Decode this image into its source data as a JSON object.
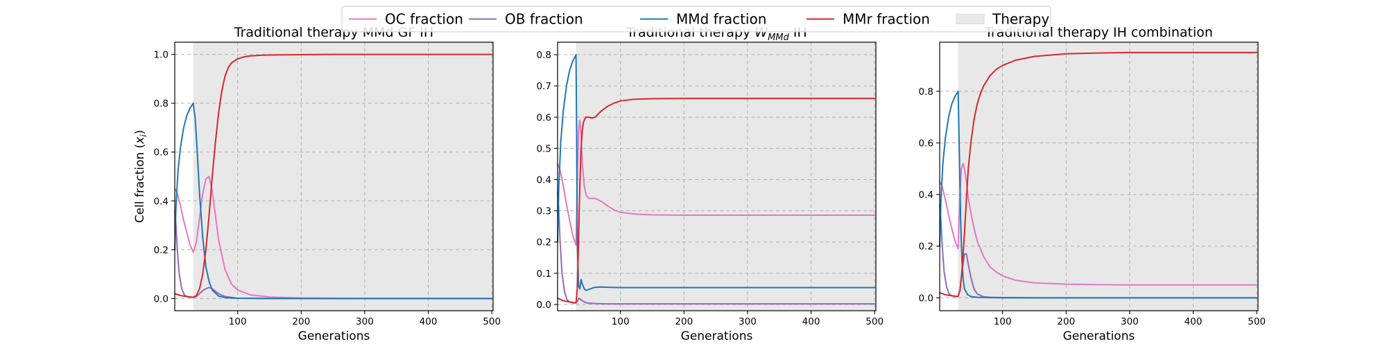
{
  "legend": {
    "items": [
      {
        "label": "OC fraction",
        "color": "#e377c2",
        "kind": "line"
      },
      {
        "label": "OB fraction",
        "color": "#9467bd",
        "kind": "line"
      },
      {
        "label": "MMd fraction",
        "color": "#1f77b4",
        "kind": "line"
      },
      {
        "label": "MMr fraction",
        "color": "#d62728",
        "kind": "line"
      },
      {
        "label": "Therapy",
        "color": "#e8e8e8",
        "kind": "patch"
      }
    ]
  },
  "chart_data": [
    {
      "type": "line",
      "title": "Traditional therapy MMd GF IH",
      "xlabel": "Generations",
      "ylabel": "Cell fraction (xᵢ)",
      "xlim": [
        1,
        502
      ],
      "ylim": [
        -0.05,
        1.05
      ],
      "xticks": [
        100,
        200,
        300,
        400,
        500
      ],
      "yticks": [
        0.0,
        0.2,
        0.4,
        0.6,
        0.8,
        1.0
      ],
      "ytick_labels": [
        "0.0",
        "0.2",
        "0.4",
        "0.6",
        "0.8",
        "1.0"
      ],
      "grid": true,
      "therapy_span": [
        30,
        502
      ],
      "series": [
        {
          "name": "OC fraction",
          "color": "#e377c2",
          "x": [
            1,
            5,
            10,
            15,
            20,
            25,
            30,
            35,
            40,
            45,
            50,
            55,
            60,
            65,
            70,
            80,
            90,
            100,
            120,
            150,
            200,
            250,
            300,
            400,
            500
          ],
          "y": [
            0.45,
            0.43,
            0.38,
            0.32,
            0.27,
            0.22,
            0.19,
            0.23,
            0.33,
            0.43,
            0.49,
            0.5,
            0.44,
            0.34,
            0.24,
            0.12,
            0.06,
            0.035,
            0.015,
            0.006,
            0.002,
            0.001,
            0.0,
            0.0,
            0.0
          ]
        },
        {
          "name": "OB fraction",
          "color": "#9467bd",
          "x": [
            1,
            3,
            5,
            8,
            12,
            16,
            20,
            25,
            30,
            35,
            40,
            45,
            50,
            55,
            60,
            65,
            70,
            80,
            100,
            150,
            200,
            300,
            400,
            500
          ],
          "y": [
            0.36,
            0.3,
            0.2,
            0.1,
            0.04,
            0.015,
            0.008,
            0.005,
            0.005,
            0.008,
            0.02,
            0.032,
            0.04,
            0.045,
            0.04,
            0.03,
            0.02,
            0.008,
            0.001,
            0.0,
            0.0,
            0.0,
            0.0,
            0.0
          ]
        },
        {
          "name": "MMd fraction",
          "color": "#1f77b4",
          "x": [
            1,
            3,
            6,
            10,
            15,
            20,
            25,
            30,
            33,
            36,
            40,
            45,
            50,
            55,
            60,
            70,
            80,
            90,
            100,
            150,
            200,
            300,
            400,
            500
          ],
          "y": [
            0.2,
            0.38,
            0.52,
            0.62,
            0.7,
            0.75,
            0.78,
            0.8,
            0.74,
            0.62,
            0.43,
            0.25,
            0.13,
            0.07,
            0.035,
            0.01,
            0.004,
            0.002,
            0.001,
            0.0,
            0.0,
            0.0,
            0.0,
            0.0
          ]
        },
        {
          "name": "MMr fraction",
          "color": "#d62728",
          "x": [
            1,
            10,
            20,
            30,
            35,
            40,
            45,
            50,
            55,
            60,
            65,
            70,
            75,
            80,
            85,
            90,
            100,
            110,
            120,
            140,
            160,
            200,
            250,
            300,
            400,
            500
          ],
          "y": [
            0.02,
            0.012,
            0.008,
            0.005,
            0.012,
            0.04,
            0.1,
            0.2,
            0.34,
            0.5,
            0.64,
            0.76,
            0.85,
            0.91,
            0.945,
            0.965,
            0.982,
            0.99,
            0.994,
            0.997,
            0.998,
            0.999,
            1.0,
            1.0,
            1.0,
            1.0
          ]
        }
      ]
    },
    {
      "type": "line",
      "title": "Traditional therapy Wₘₘᵈ IH",
      "title_main": "Traditional therapy ",
      "title_math": "W",
      "title_sub": "MMd",
      "title_tail": " IH",
      "xlabel": "Generations",
      "ylabel": "",
      "xlim": [
        1,
        502
      ],
      "ylim": [
        -0.02,
        0.84
      ],
      "xticks": [
        100,
        200,
        300,
        400,
        500
      ],
      "yticks": [
        0.0,
        0.1,
        0.2,
        0.3,
        0.4,
        0.5,
        0.6,
        0.7,
        0.8
      ],
      "ytick_labels": [
        "0.0",
        "0.1",
        "0.2",
        "0.3",
        "0.4",
        "0.5",
        "0.6",
        "0.7",
        "0.8"
      ],
      "grid": true,
      "therapy_span": [
        30,
        502
      ],
      "series": [
        {
          "name": "OC fraction",
          "color": "#e377c2",
          "x": [
            1,
            5,
            10,
            15,
            20,
            25,
            30,
            32,
            34,
            36,
            38,
            40,
            43,
            46,
            50,
            55,
            60,
            65,
            70,
            80,
            90,
            100,
            120,
            150,
            200,
            300,
            400,
            500
          ],
          "y": [
            0.45,
            0.43,
            0.38,
            0.32,
            0.27,
            0.22,
            0.19,
            0.4,
            0.56,
            0.59,
            0.54,
            0.45,
            0.38,
            0.35,
            0.34,
            0.34,
            0.34,
            0.335,
            0.33,
            0.315,
            0.303,
            0.295,
            0.29,
            0.287,
            0.286,
            0.286,
            0.286,
            0.286
          ]
        },
        {
          "name": "OB fraction",
          "color": "#9467bd",
          "x": [
            1,
            3,
            5,
            8,
            12,
            16,
            20,
            25,
            30,
            35,
            40,
            45,
            50,
            60,
            80,
            100,
            150,
            200,
            300,
            400,
            500
          ],
          "y": [
            0.36,
            0.3,
            0.2,
            0.1,
            0.04,
            0.015,
            0.008,
            0.005,
            0.005,
            0.02,
            0.012,
            0.006,
            0.004,
            0.003,
            0.002,
            0.002,
            0.002,
            0.002,
            0.002,
            0.002,
            0.002
          ]
        },
        {
          "name": "MMd fraction",
          "color": "#1f77b4",
          "x": [
            1,
            3,
            6,
            10,
            15,
            20,
            25,
            30,
            31,
            32,
            34,
            36,
            38,
            40,
            43,
            46,
            50,
            55,
            60,
            70,
            80,
            100,
            150,
            200,
            300,
            400,
            500
          ],
          "y": [
            0.2,
            0.38,
            0.52,
            0.62,
            0.7,
            0.75,
            0.78,
            0.8,
            0.55,
            0.2,
            0.06,
            0.05,
            0.08,
            0.065,
            0.05,
            0.045,
            0.048,
            0.052,
            0.055,
            0.056,
            0.055,
            0.054,
            0.054,
            0.054,
            0.054,
            0.054,
            0.054
          ]
        },
        {
          "name": "MMr fraction",
          "color": "#d62728",
          "x": [
            1,
            10,
            20,
            30,
            32,
            34,
            36,
            38,
            40,
            42,
            44,
            46,
            50,
            55,
            60,
            65,
            70,
            80,
            90,
            100,
            120,
            150,
            200,
            300,
            400,
            500
          ],
          "y": [
            0.02,
            0.012,
            0.008,
            0.005,
            0.05,
            0.2,
            0.38,
            0.5,
            0.56,
            0.585,
            0.595,
            0.6,
            0.6,
            0.597,
            0.6,
            0.61,
            0.62,
            0.635,
            0.645,
            0.652,
            0.657,
            0.659,
            0.66,
            0.66,
            0.66,
            0.66
          ]
        }
      ]
    },
    {
      "type": "line",
      "title": "Traditional therapy IH combination",
      "xlabel": "Generations",
      "ylabel": "",
      "xlim": [
        1,
        502
      ],
      "ylim": [
        -0.05,
        0.99
      ],
      "xticks": [
        100,
        200,
        300,
        400,
        500
      ],
      "yticks": [
        0.0,
        0.2,
        0.4,
        0.6,
        0.8
      ],
      "ytick_labels": [
        "0.0",
        "0.2",
        "0.4",
        "0.6",
        "0.8"
      ],
      "grid": true,
      "therapy_span": [
        30,
        502
      ],
      "series": [
        {
          "name": "OC fraction",
          "color": "#e377c2",
          "x": [
            1,
            5,
            10,
            15,
            20,
            25,
            30,
            32,
            35,
            38,
            40,
            43,
            46,
            50,
            55,
            60,
            70,
            80,
            90,
            100,
            120,
            150,
            200,
            250,
            300,
            400,
            500
          ],
          "y": [
            0.45,
            0.43,
            0.38,
            0.32,
            0.27,
            0.22,
            0.19,
            0.35,
            0.5,
            0.52,
            0.5,
            0.45,
            0.39,
            0.33,
            0.27,
            0.22,
            0.16,
            0.12,
            0.1,
            0.085,
            0.068,
            0.058,
            0.053,
            0.051,
            0.05,
            0.05,
            0.05
          ]
        },
        {
          "name": "OB fraction",
          "color": "#9467bd",
          "x": [
            1,
            3,
            5,
            8,
            12,
            16,
            20,
            25,
            30,
            33,
            36,
            40,
            43,
            46,
            50,
            55,
            60,
            70,
            80,
            100,
            150,
            200,
            300,
            400,
            500
          ],
          "y": [
            0.36,
            0.3,
            0.2,
            0.1,
            0.04,
            0.015,
            0.008,
            0.005,
            0.005,
            0.03,
            0.1,
            0.17,
            0.17,
            0.13,
            0.08,
            0.035,
            0.015,
            0.004,
            0.002,
            0.001,
            0.0,
            0.0,
            0.0,
            0.0,
            0.0
          ]
        },
        {
          "name": "MMd fraction",
          "color": "#1f77b4",
          "x": [
            1,
            3,
            6,
            10,
            15,
            20,
            25,
            30,
            32,
            34,
            36,
            38,
            40,
            45,
            50,
            60,
            80,
            100,
            150,
            200,
            300,
            400,
            500
          ],
          "y": [
            0.2,
            0.38,
            0.52,
            0.62,
            0.7,
            0.75,
            0.78,
            0.8,
            0.55,
            0.3,
            0.15,
            0.07,
            0.035,
            0.012,
            0.005,
            0.002,
            0.001,
            0.0,
            0.0,
            0.0,
            0.0,
            0.0,
            0.0
          ]
        },
        {
          "name": "MMr fraction",
          "color": "#d62728",
          "x": [
            1,
            10,
            20,
            30,
            33,
            36,
            40,
            43,
            46,
            50,
            55,
            60,
            65,
            70,
            80,
            90,
            100,
            120,
            150,
            200,
            250,
            300,
            400,
            500
          ],
          "y": [
            0.02,
            0.012,
            0.008,
            0.005,
            0.03,
            0.1,
            0.25,
            0.38,
            0.5,
            0.6,
            0.69,
            0.75,
            0.79,
            0.82,
            0.86,
            0.885,
            0.9,
            0.92,
            0.935,
            0.945,
            0.948,
            0.95,
            0.95,
            0.95
          ]
        }
      ]
    }
  ]
}
